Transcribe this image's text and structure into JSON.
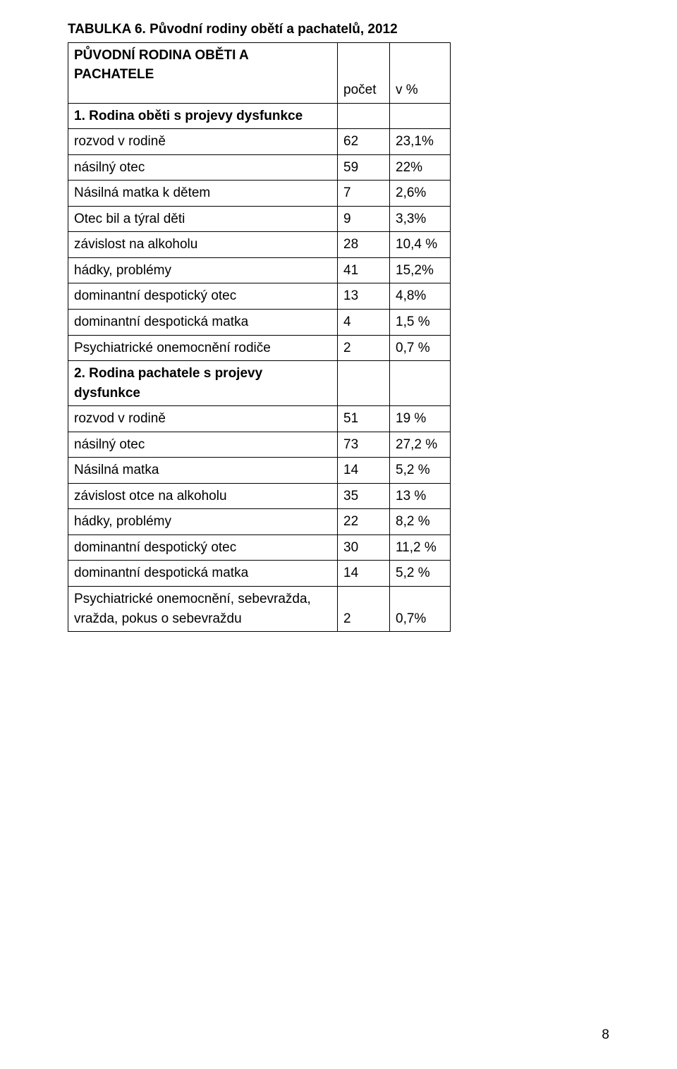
{
  "title": "TABULKA  6. Původní rodiny obětí  a pachatelů, 2012",
  "header_row": {
    "label": "PŮVODNÍ RODINA OBĚTI A PACHATELE",
    "col_n": "počet",
    "col_pct": "v %"
  },
  "section1": {
    "heading": "1. Rodina oběti s projevy dysfunkce",
    "rows": [
      {
        "label": "rozvod v rodině",
        "n": "62",
        "pct": "23,1%"
      },
      {
        "label": "násilný otec",
        "n": "59",
        "pct": "22%"
      },
      {
        "label": "Násilná matka k dětem",
        "n": "7",
        "pct": "2,6%"
      },
      {
        "label": "Otec bil a týral děti",
        "n": "9",
        "pct": "3,3%"
      },
      {
        "label": "závislost na alkoholu",
        "n": "28",
        "pct": "10,4 %"
      },
      {
        "label": "hádky, problémy",
        "n": "41",
        "pct": "15,2%"
      },
      {
        "label": "dominantní despotický otec",
        "n": "13",
        "pct": "4,8%"
      },
      {
        "label": "dominantní despotická matka",
        "n": "4",
        "pct": "1,5 %"
      },
      {
        "label": "Psychiatrické onemocnění rodiče",
        "n": "2",
        "pct": "0,7 %"
      }
    ]
  },
  "section2": {
    "heading": "2. Rodina pachatele s projevy dysfunkce",
    "rows": [
      {
        "label": "rozvod v rodině",
        "n": "51",
        "pct": "19 %"
      },
      {
        "label": "násilný otec",
        "n": "73",
        "pct": "27,2 %"
      },
      {
        "label": "Násilná matka",
        "n": "14",
        "pct": "5,2 %"
      },
      {
        "label": "závislost otce na alkoholu",
        "n": "35",
        "pct": "13 %"
      },
      {
        "label": "hádky, problémy",
        "n": "22",
        "pct": "8,2 %"
      },
      {
        "label": "dominantní despotický otec",
        "n": "30",
        "pct": "11,2 %"
      },
      {
        "label": "dominantní despotická matka",
        "n": "14",
        "pct": "5,2 %"
      },
      {
        "label": "Psychiatrické onemocnění, sebevražda, vražda, pokus o sebevraždu",
        "n": "2",
        "pct": "0,7%"
      }
    ]
  },
  "page_number": "8"
}
